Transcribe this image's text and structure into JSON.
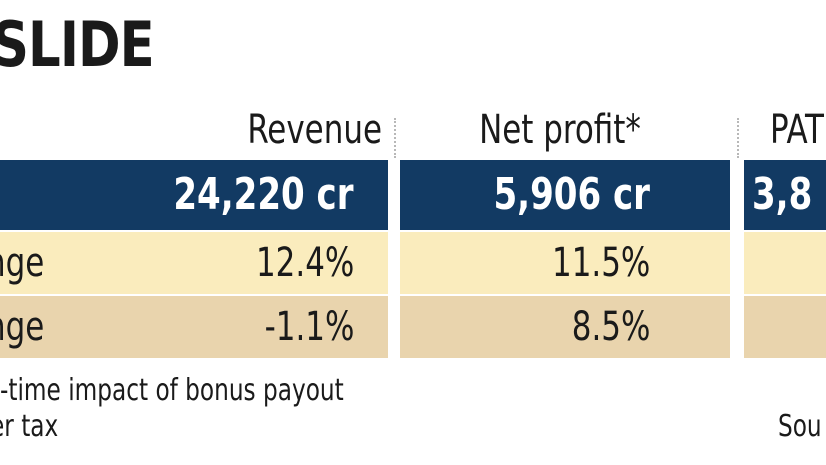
{
  "title": "SLIDE",
  "columns": {
    "revenue": "Revenue",
    "net_profit": "Net profit*",
    "pat": "PAT"
  },
  "rows": [
    {
      "label": "",
      "revenue": "24,220 cr",
      "net_profit": "5,906 cr",
      "pat": "3,8"
    },
    {
      "label": "nge",
      "revenue": "12.4%",
      "net_profit": "11.5%",
      "pat": ""
    },
    {
      "label": "nge",
      "revenue": "-1.1%",
      "net_profit": "8.5%",
      "pat": ""
    }
  ],
  "footnotes": {
    "line1": "-time impact of bonus payout",
    "line2": "er tax",
    "source": "Sou"
  },
  "colors": {
    "header_row": "#123a63",
    "row_light": "#faecbd",
    "row_dark": "#e9d4ad"
  },
  "chart_data": {
    "type": "table",
    "title": "SLIDE",
    "columns": [
      "Revenue",
      "Net profit*",
      "PAT"
    ],
    "rows": [
      {
        "label": "",
        "values": [
          "24,220 cr",
          "5,906 cr",
          "3,8"
        ]
      },
      {
        "label": "nge",
        "values": [
          "12.4%",
          "11.5%",
          ""
        ]
      },
      {
        "label": "nge",
        "values": [
          "-1.1%",
          "8.5%",
          ""
        ]
      }
    ]
  }
}
